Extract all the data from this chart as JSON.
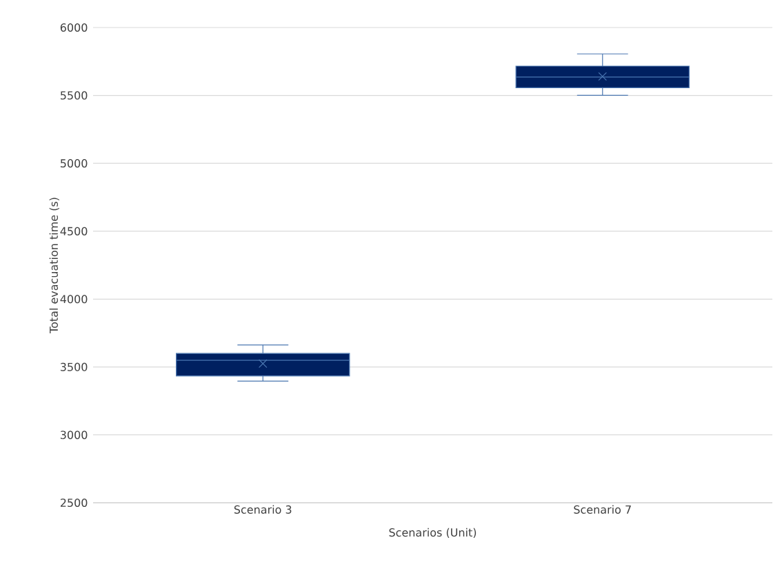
{
  "chart_data": {
    "type": "box",
    "xlabel": "Scenarios (Unit)",
    "ylabel": "Total evacuation time (s)",
    "categories": [
      "Scenario 3",
      "Scenario 7"
    ],
    "color": "#002060",
    "boxes": [
      {
        "low": 3396,
        "q1": 3434,
        "median": 3549,
        "q3": 3600,
        "high": 3662,
        "mean": 3525
      },
      {
        "low": 5501,
        "q1": 5557,
        "median": 5635,
        "q3": 5716,
        "high": 5806,
        "mean": 5640
      }
    ],
    "ylim": [
      2500,
      6000
    ],
    "yticks": [
      2500,
      3000,
      3500,
      4000,
      4500,
      5000,
      5500,
      6000
    ],
    "grid": "y"
  }
}
